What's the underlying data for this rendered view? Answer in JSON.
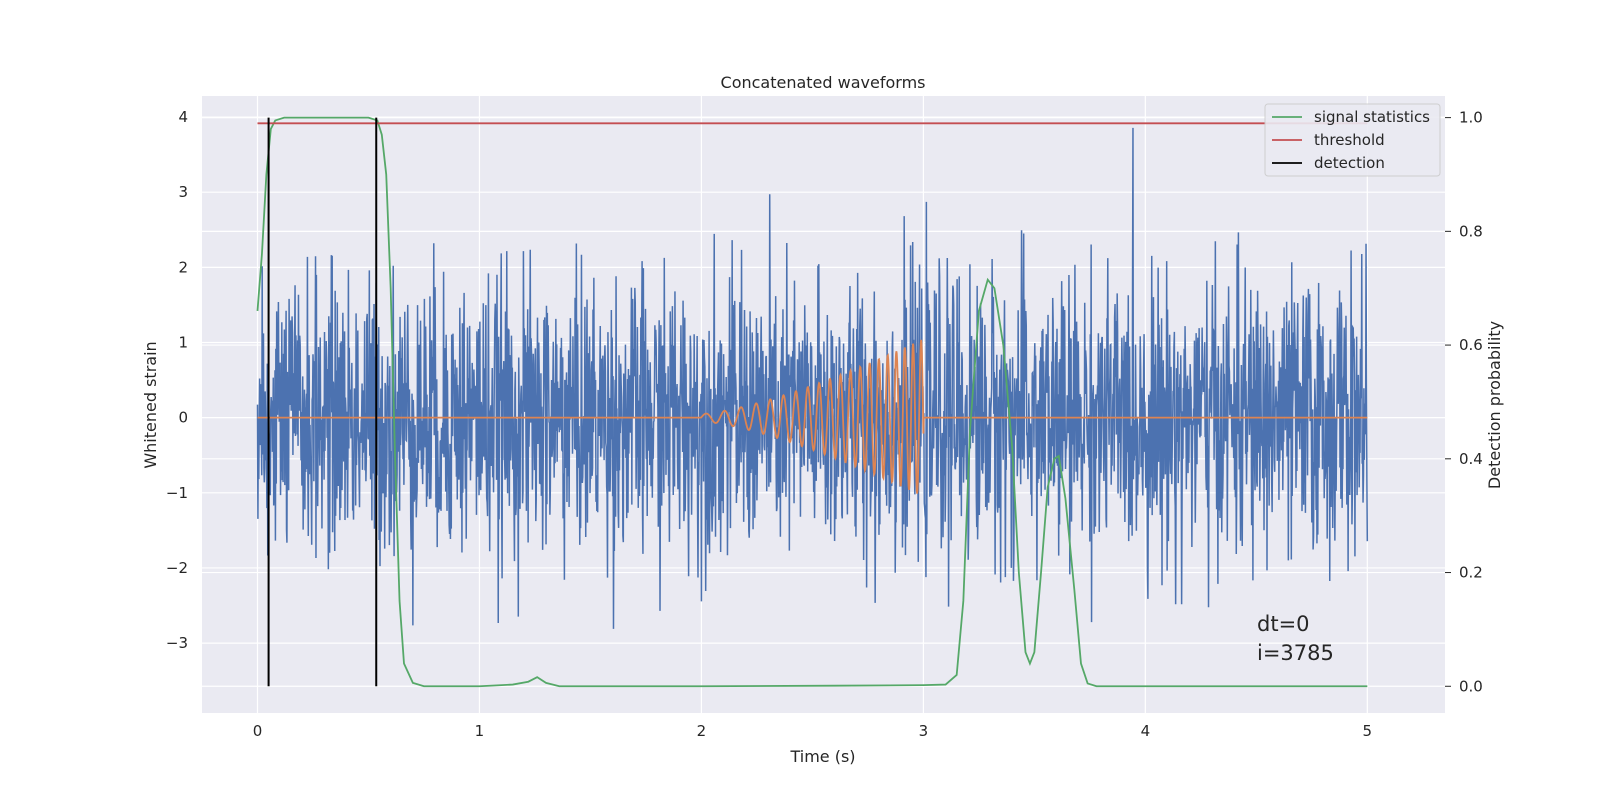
{
  "chart_data": {
    "type": "line",
    "title": "Concatenated waveforms",
    "xlabel": "Time (s)",
    "ylabel": "Whitened strain",
    "y2label": "Detection probability",
    "xlim": [
      -0.25,
      5.35
    ],
    "ylim": [
      -3.93,
      4.28
    ],
    "y2lim": [
      -0.047,
      1.038
    ],
    "x_ticks": [
      "0",
      "1",
      "2",
      "3",
      "4",
      "5"
    ],
    "y_ticks": [
      "−3",
      "−2",
      "−1",
      "0",
      "1",
      "2",
      "3",
      "4"
    ],
    "y2_ticks": [
      "0.0",
      "0.2",
      "0.4",
      "0.6",
      "0.8",
      "1.0"
    ],
    "grid": true,
    "legend_position": "top-right",
    "background": "#eaeaf2",
    "series": [
      {
        "name": "",
        "axis": "left",
        "color": "#4c72b0",
        "kind": "noise",
        "x_range": [
          0,
          5
        ],
        "envelope_max": 3.9,
        "envelope_min": -3.65,
        "typical_amplitude": 0.9
      },
      {
        "name": "",
        "axis": "left",
        "color": "#dd8452",
        "kind": "chirp",
        "x_range": [
          0,
          5
        ],
        "chirp_start": 2.0,
        "chirp_end": 3.0,
        "amplitude_start": 0.05,
        "amplitude_end": 1.05,
        "frequency_start": 11,
        "frequency_end": 28
      },
      {
        "name": "signal statistics",
        "axis": "right",
        "color": "#55a868",
        "points": [
          [
            0.0,
            0.66
          ],
          [
            0.02,
            0.76
          ],
          [
            0.04,
            0.9
          ],
          [
            0.06,
            0.98
          ],
          [
            0.08,
            0.995
          ],
          [
            0.12,
            1.0
          ],
          [
            0.3,
            1.0
          ],
          [
            0.5,
            1.0
          ],
          [
            0.54,
            0.995
          ],
          [
            0.56,
            0.97
          ],
          [
            0.58,
            0.9
          ],
          [
            0.6,
            0.7
          ],
          [
            0.62,
            0.4
          ],
          [
            0.64,
            0.15
          ],
          [
            0.66,
            0.04
          ],
          [
            0.7,
            0.006
          ],
          [
            0.75,
            0.0
          ],
          [
            1.0,
            0.0
          ],
          [
            1.15,
            0.003
          ],
          [
            1.22,
            0.008
          ],
          [
            1.26,
            0.016
          ],
          [
            1.3,
            0.006
          ],
          [
            1.36,
            0.0
          ],
          [
            2.0,
            0.0
          ],
          [
            2.6,
            0.001
          ],
          [
            3.0,
            0.002
          ],
          [
            3.1,
            0.003
          ],
          [
            3.15,
            0.02
          ],
          [
            3.18,
            0.15
          ],
          [
            3.21,
            0.45
          ],
          [
            3.25,
            0.66
          ],
          [
            3.29,
            0.715
          ],
          [
            3.32,
            0.7
          ],
          [
            3.36,
            0.6
          ],
          [
            3.4,
            0.42
          ],
          [
            3.43,
            0.2
          ],
          [
            3.46,
            0.06
          ],
          [
            3.48,
            0.04
          ],
          [
            3.5,
            0.06
          ],
          [
            3.53,
            0.2
          ],
          [
            3.56,
            0.35
          ],
          [
            3.59,
            0.4
          ],
          [
            3.61,
            0.405
          ],
          [
            3.64,
            0.33
          ],
          [
            3.68,
            0.17
          ],
          [
            3.71,
            0.04
          ],
          [
            3.74,
            0.005
          ],
          [
            3.78,
            0.0
          ],
          [
            4.0,
            0.0
          ],
          [
            5.0,
            0.0
          ]
        ]
      },
      {
        "name": "threshold",
        "axis": "right",
        "color": "#c44e52",
        "points": [
          [
            0.0,
            0.99
          ],
          [
            5.0,
            0.99
          ]
        ]
      }
    ],
    "detection": {
      "name": "detection",
      "color": "#000000",
      "x": [
        0.05,
        0.535
      ],
      "y_range": [
        0.0,
        1.0
      ]
    },
    "annotation": {
      "line1": "dt=0",
      "line2": "i=3785"
    }
  }
}
